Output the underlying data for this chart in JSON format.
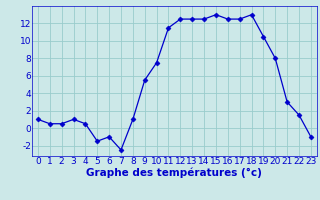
{
  "hours": [
    0,
    1,
    2,
    3,
    4,
    5,
    6,
    7,
    8,
    9,
    10,
    11,
    12,
    13,
    14,
    15,
    16,
    17,
    18,
    19,
    20,
    21,
    22,
    23
  ],
  "temps": [
    1,
    0.5,
    0.5,
    1,
    0.5,
    -1.5,
    -1,
    -2.5,
    1,
    5.5,
    7.5,
    11.5,
    12.5,
    12.5,
    12.5,
    13,
    12.5,
    12.5,
    13,
    10.5,
    8,
    3,
    1.5,
    -1
  ],
  "line_color": "#0000cc",
  "marker": "D",
  "marker_size": 2.5,
  "bg_color": "#cce8e8",
  "grid_color": "#99cccc",
  "xlabel": "Graphe des températures (°c)",
  "ylabel_ticks": [
    -2,
    0,
    2,
    4,
    6,
    8,
    10,
    12
  ],
  "ylim": [
    -3.2,
    14.0
  ],
  "xlim": [
    -0.5,
    23.5
  ],
  "xlabel_fontsize": 7.5,
  "tick_fontsize": 6.5,
  "axis_color": "#0000cc",
  "label_color": "#0000cc",
  "bottom_bar_color": "#2244aa"
}
